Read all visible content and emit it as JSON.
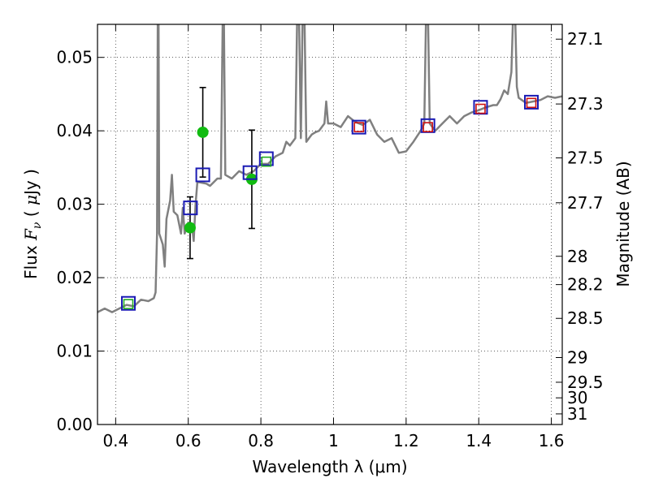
{
  "chart_data": {
    "type": "scatter",
    "xlabel": "Wavelength  λ (μm)",
    "ylabel": "Flux  F_ν  ( μJy )",
    "right_ylabel": "Magnitude (AB)",
    "xlim": [
      0.35,
      1.63
    ],
    "ylim": [
      0.0,
      0.0545
    ],
    "x_ticks": [
      "0.4",
      "0.6",
      "0.8",
      "1",
      "1.2",
      "1.4",
      "1.6"
    ],
    "y_ticks": [
      "0.00",
      "0.01",
      "0.02",
      "0.03",
      "0.04",
      "0.05"
    ],
    "magnitude_ticks": [
      "27.1",
      "27.3",
      "27.5",
      "27.7",
      "28",
      "28.2",
      "28.5",
      "29",
      "29.5",
      "30",
      "31"
    ],
    "grid": true,
    "colors": {
      "spectrum": "#808080",
      "observed": "#11bb11",
      "model_box": "#1a1ab4",
      "green_box": "#22aa22",
      "red_box": "#cc1111",
      "errorbar": "#000000"
    },
    "series": [
      {
        "marker": "circle",
        "color": "#11bb11",
        "points": [
          {
            "x": 0.605,
            "y": 0.0268,
            "err": 0.0042
          },
          {
            "x": 0.64,
            "y": 0.0398,
            "err": 0.0061
          },
          {
            "x": 0.775,
            "y": 0.0334,
            "err": 0.0067
          }
        ]
      },
      {
        "marker": "open-square",
        "color": "#1a1ab4",
        "points": [
          {
            "x": 0.435,
            "y": 0.0165
          },
          {
            "x": 0.606,
            "y": 0.0295
          },
          {
            "x": 0.64,
            "y": 0.034
          },
          {
            "x": 0.77,
            "y": 0.0343
          },
          {
            "x": 0.815,
            "y": 0.0362
          },
          {
            "x": 1.07,
            "y": 0.0405
          },
          {
            "x": 1.26,
            "y": 0.0407
          },
          {
            "x": 1.405,
            "y": 0.0432
          },
          {
            "x": 1.545,
            "y": 0.0439
          }
        ]
      },
      {
        "marker": "open-square-small",
        "color": "#22aa22",
        "points": [
          {
            "x": 0.435,
            "y": 0.0164
          },
          {
            "x": 0.815,
            "y": 0.0358
          }
        ]
      },
      {
        "marker": "open-square-small",
        "color": "#cc1111",
        "points": [
          {
            "x": 1.07,
            "y": 0.0405
          },
          {
            "x": 1.26,
            "y": 0.0405
          },
          {
            "x": 1.405,
            "y": 0.043
          },
          {
            "x": 1.545,
            "y": 0.0438
          }
        ]
      },
      {
        "marker": "line",
        "color": "#808080",
        "points": [
          [
            0.35,
            0.0153
          ],
          [
            0.37,
            0.0158
          ],
          [
            0.39,
            0.0153
          ],
          [
            0.41,
            0.0158
          ],
          [
            0.43,
            0.0163
          ],
          [
            0.45,
            0.0161
          ],
          [
            0.47,
            0.017
          ],
          [
            0.49,
            0.0168
          ],
          [
            0.505,
            0.0172
          ],
          [
            0.51,
            0.018
          ],
          [
            0.514,
            0.026
          ],
          [
            0.516,
            0.056
          ],
          [
            0.518,
            0.056
          ],
          [
            0.52,
            0.026
          ],
          [
            0.53,
            0.0245
          ],
          [
            0.535,
            0.0215
          ],
          [
            0.54,
            0.028
          ],
          [
            0.55,
            0.0305
          ],
          [
            0.555,
            0.034
          ],
          [
            0.56,
            0.029
          ],
          [
            0.57,
            0.0285
          ],
          [
            0.58,
            0.026
          ],
          [
            0.585,
            0.0295
          ],
          [
            0.59,
            0.026
          ],
          [
            0.6,
            0.0275
          ],
          [
            0.61,
            0.0272
          ],
          [
            0.615,
            0.025
          ],
          [
            0.62,
            0.03
          ],
          [
            0.625,
            0.033
          ],
          [
            0.63,
            0.033
          ],
          [
            0.65,
            0.0328
          ],
          [
            0.66,
            0.0325
          ],
          [
            0.67,
            0.033
          ],
          [
            0.68,
            0.0335
          ],
          [
            0.69,
            0.0335
          ],
          [
            0.695,
            0.056
          ],
          [
            0.698,
            0.056
          ],
          [
            0.702,
            0.034
          ],
          [
            0.72,
            0.0335
          ],
          [
            0.74,
            0.0345
          ],
          [
            0.76,
            0.034
          ],
          [
            0.78,
            0.0345
          ],
          [
            0.8,
            0.0355
          ],
          [
            0.82,
            0.0355
          ],
          [
            0.84,
            0.0365
          ],
          [
            0.86,
            0.037
          ],
          [
            0.87,
            0.0385
          ],
          [
            0.88,
            0.038
          ],
          [
            0.895,
            0.039
          ],
          [
            0.9,
            0.056
          ],
          [
            0.905,
            0.056
          ],
          [
            0.91,
            0.039
          ],
          [
            0.915,
            0.056
          ],
          [
            0.92,
            0.056
          ],
          [
            0.925,
            0.0385
          ],
          [
            0.94,
            0.0395
          ],
          [
            0.95,
            0.0398
          ],
          [
            0.96,
            0.04
          ],
          [
            0.975,
            0.041
          ],
          [
            0.98,
            0.044
          ],
          [
            0.985,
            0.041
          ],
          [
            1.0,
            0.041
          ],
          [
            1.02,
            0.0405
          ],
          [
            1.04,
            0.042
          ],
          [
            1.06,
            0.0412
          ],
          [
            1.08,
            0.0408
          ],
          [
            1.1,
            0.0415
          ],
          [
            1.12,
            0.0395
          ],
          [
            1.14,
            0.0385
          ],
          [
            1.16,
            0.039
          ],
          [
            1.18,
            0.037
          ],
          [
            1.2,
            0.0372
          ],
          [
            1.22,
            0.0385
          ],
          [
            1.24,
            0.04
          ],
          [
            1.25,
            0.041
          ],
          [
            1.255,
            0.056
          ],
          [
            1.26,
            0.056
          ],
          [
            1.265,
            0.041
          ],
          [
            1.28,
            0.04
          ],
          [
            1.3,
            0.041
          ],
          [
            1.32,
            0.042
          ],
          [
            1.34,
            0.041
          ],
          [
            1.36,
            0.042
          ],
          [
            1.38,
            0.0425
          ],
          [
            1.4,
            0.0428
          ],
          [
            1.42,
            0.0432
          ],
          [
            1.44,
            0.0435
          ],
          [
            1.45,
            0.0435
          ],
          [
            1.46,
            0.0443
          ],
          [
            1.47,
            0.0455
          ],
          [
            1.48,
            0.045
          ],
          [
            1.49,
            0.048
          ],
          [
            1.495,
            0.0565
          ],
          [
            1.5,
            0.0565
          ],
          [
            1.505,
            0.046
          ],
          [
            1.51,
            0.0445
          ],
          [
            1.53,
            0.0438
          ],
          [
            1.55,
            0.044
          ],
          [
            1.57,
            0.0442
          ],
          [
            1.59,
            0.0447
          ],
          [
            1.61,
            0.0445
          ],
          [
            1.63,
            0.0447
          ]
        ]
      }
    ]
  }
}
